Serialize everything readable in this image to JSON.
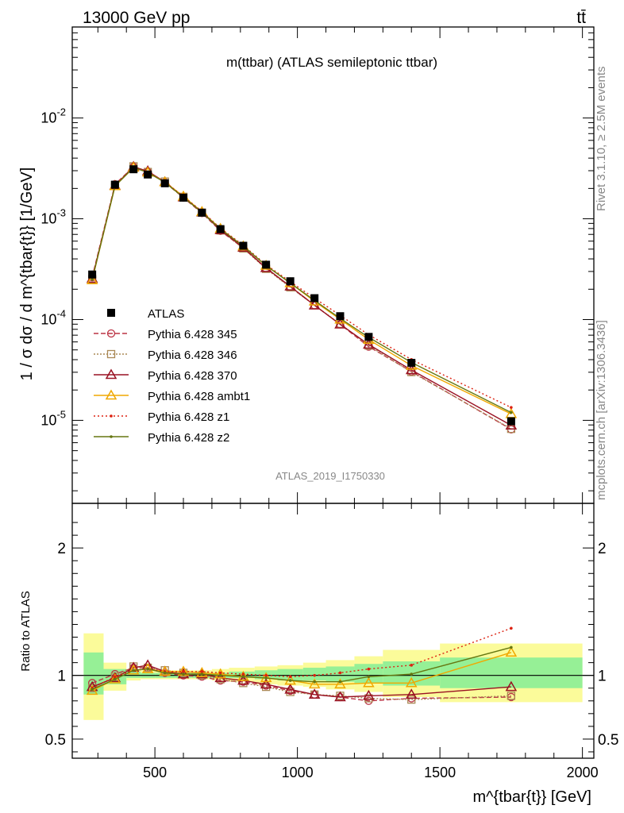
{
  "header": {
    "left": "13000 GeV pp",
    "right": "tt̄"
  },
  "side": {
    "rivet": "Rivet 3.1.10, ≥ 2.5M events",
    "mcplots": "mcplots.cern.ch [arXiv:1306.3436]"
  },
  "watermark": "ATLAS_2019_I1750330",
  "chart_data": [
    {
      "type": "line",
      "title": "m(ttbar) (ATLAS semileptonic ttbar)",
      "ylabel": "1 / σ dσ / d m^{tbar{t}} [1/GeV]",
      "yscale": "log",
      "ylim": [
        1.5e-06,
        0.08
      ],
      "xlim": [
        210,
        2040
      ],
      "legend_position": "left-middle",
      "yticks": [
        {
          "value": 0.01,
          "label": "10^-2"
        },
        {
          "value": 0.001,
          "label": "10^-3"
        },
        {
          "value": 0.0001,
          "label": "10^-4"
        },
        {
          "value": 1e-05,
          "label": "10^-5"
        }
      ],
      "x": [
        280,
        360,
        425,
        475,
        535,
        600,
        665,
        730,
        810,
        890,
        975,
        1060,
        1150,
        1250,
        1400,
        1750
      ],
      "data": {
        "name": "ATLAS",
        "values": [
          0.00028,
          0.00218,
          0.0031,
          0.00275,
          0.00225,
          0.00162,
          0.00115,
          0.00079,
          0.00054,
          0.00035,
          0.00024,
          0.000163,
          0.000108,
          6.73e-05,
          3.72e-05,
          9.8e-06
        ],
        "band_edges": [
          250,
          320,
          400,
          450,
          500,
          570,
          630,
          700,
          760,
          850,
          930,
          1020,
          1100,
          1200,
          1300,
          1500,
          2000
        ],
        "ratio_band_green": [
          [
            0.85,
            1.18
          ],
          [
            0.93,
            1.05
          ],
          [
            0.98,
            1.03
          ],
          [
            0.98,
            1.02
          ],
          [
            0.98,
            1.02
          ],
          [
            0.98,
            1.02
          ],
          [
            0.98,
            1.02
          ],
          [
            0.98,
            1.02
          ],
          [
            0.98,
            1.03
          ],
          [
            0.97,
            1.04
          ],
          [
            0.96,
            1.05
          ],
          [
            0.96,
            1.06
          ],
          [
            0.95,
            1.07
          ],
          [
            0.94,
            1.09
          ],
          [
            0.92,
            1.11
          ],
          [
            0.9,
            1.14
          ]
        ],
        "ratio_band_yellow": [
          [
            0.65,
            1.33
          ],
          [
            0.88,
            1.1
          ],
          [
            0.96,
            1.05
          ],
          [
            0.97,
            1.04
          ],
          [
            0.97,
            1.04
          ],
          [
            0.97,
            1.04
          ],
          [
            0.97,
            1.04
          ],
          [
            0.96,
            1.05
          ],
          [
            0.95,
            1.06
          ],
          [
            0.93,
            1.07
          ],
          [
            0.92,
            1.08
          ],
          [
            0.91,
            1.1
          ],
          [
            0.89,
            1.12
          ],
          [
            0.87,
            1.15
          ],
          [
            0.83,
            1.2
          ],
          [
            0.79,
            1.25
          ]
        ]
      },
      "series": [
        {
          "name": "Pythia 6.428 345",
          "color": "#bb3344",
          "dash": "6,3",
          "marker": "circle",
          "ratio": [
            0.94,
            1.01,
            1.06,
            1.06,
            1.02,
            1.0,
            0.99,
            0.96,
            0.95,
            0.92,
            0.88,
            0.85,
            0.83,
            0.8,
            0.82,
            0.83
          ]
        },
        {
          "name": "Pythia 6.428 346",
          "color": "#aa8855",
          "dash": "2,2",
          "marker": "square",
          "ratio": [
            0.9,
            0.99,
            1.07,
            1.06,
            1.04,
            1.02,
            1.0,
            0.97,
            0.94,
            0.91,
            0.87,
            0.85,
            0.84,
            0.82,
            0.81,
            0.84
          ]
        },
        {
          "name": "Pythia 6.428 370",
          "color": "#991122",
          "dash": "",
          "marker": "triangle-open",
          "ratio": [
            0.91,
            0.98,
            1.06,
            1.08,
            1.03,
            1.01,
            1.01,
            0.98,
            0.96,
            0.93,
            0.89,
            0.85,
            0.83,
            0.84,
            0.85,
            0.91
          ]
        },
        {
          "name": "Pythia 6.428 ambt1",
          "color": "#f0a800",
          "dash": "",
          "marker": "triangle-open",
          "ratio": [
            0.88,
            0.97,
            1.04,
            1.05,
            1.03,
            1.03,
            1.02,
            1.01,
            0.99,
            0.98,
            0.96,
            0.93,
            0.93,
            0.94,
            0.94,
            1.18
          ]
        },
        {
          "name": "Pythia 6.428 z1",
          "color": "#dd2211",
          "dash": "2,3",
          "marker": "dot",
          "ratio": [
            0.9,
            0.99,
            1.04,
            1.05,
            1.03,
            1.03,
            1.03,
            1.02,
            1.01,
            1.0,
            0.99,
            1.0,
            1.02,
            1.05,
            1.08,
            1.37
          ]
        },
        {
          "name": "Pythia 6.428 z2",
          "color": "#667711",
          "dash": "",
          "marker": "dot",
          "ratio": [
            0.89,
            0.97,
            1.04,
            1.05,
            1.02,
            1.01,
            1.01,
            1.0,
            0.99,
            0.98,
            0.96,
            0.95,
            0.95,
            0.99,
            1.01,
            1.22
          ]
        }
      ]
    },
    {
      "type": "line",
      "ylabel": "Ratio to ATLAS",
      "xlabel": "m^{tbar{t}} [GeV]",
      "ylim": [
        0.35,
        2.35
      ],
      "xlim": [
        210,
        2040
      ],
      "xticks": [
        500,
        1000,
        1500,
        2000
      ],
      "xtick_labels": [
        "500",
        "1000",
        "1500",
        "2000"
      ],
      "yticks": [
        0.5,
        1,
        2
      ],
      "ytick_labels": [
        "0.5",
        "1",
        "2"
      ],
      "reference_line": 1
    }
  ]
}
